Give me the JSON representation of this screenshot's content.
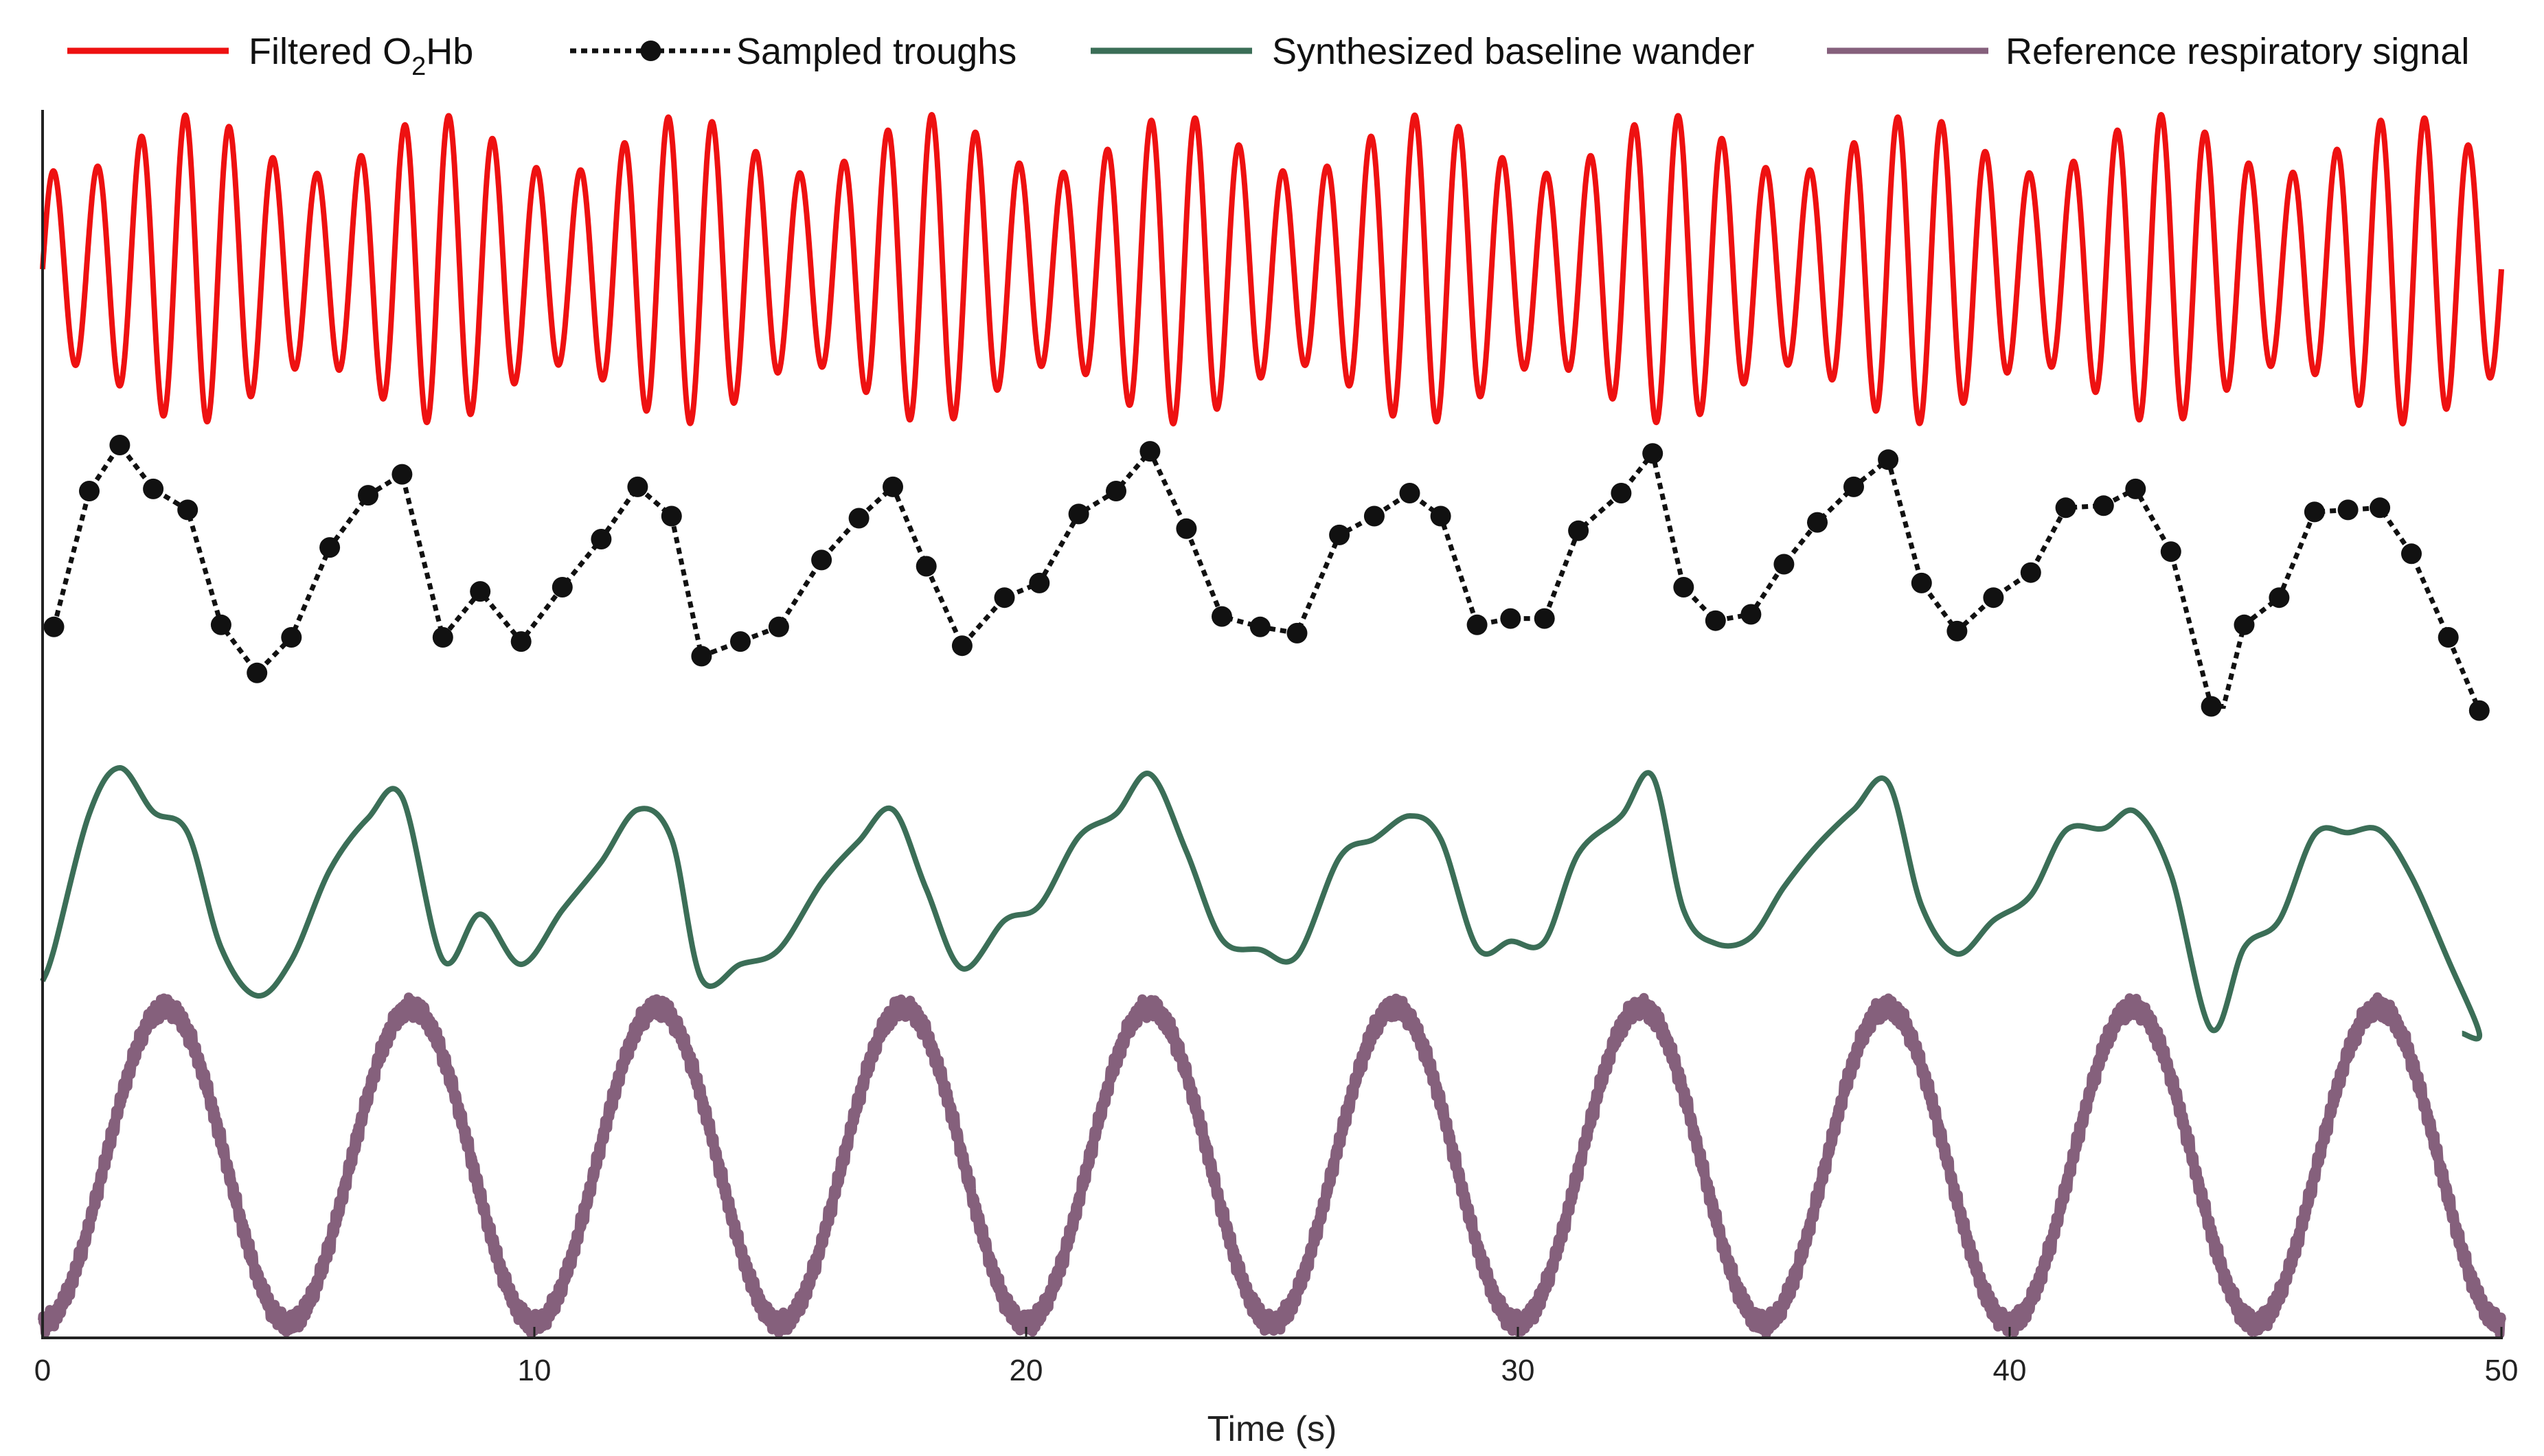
{
  "chart_data": {
    "type": "line",
    "title": "",
    "xlabel": "Time (s)",
    "ylabel": "",
    "xlim": [
      0,
      50
    ],
    "x_ticks": [
      0,
      10,
      20,
      30,
      40,
      50
    ],
    "y_ticks": "none",
    "grid": false,
    "legend_position": "top",
    "legend": [
      {
        "id": "filtered",
        "label_main": "Filtered O",
        "label_sub": "2",
        "label_tail": "Hb",
        "color": "#ee1111",
        "style": "solid"
      },
      {
        "id": "troughs",
        "label_main": "Sampled troughs",
        "label_sub": "",
        "label_tail": "",
        "color": "#111111",
        "style": "dotted-with-markers"
      },
      {
        "id": "baseline",
        "label_main": "Synthesized baseline wander",
        "label_sub": "",
        "label_tail": "",
        "color": "#3b6e57",
        "style": "solid"
      },
      {
        "id": "reference",
        "label_main": "Reference respiratory signal",
        "label_sub": "",
        "label_tail": "",
        "color": "#85607c",
        "style": "solid"
      }
    ],
    "series": [
      {
        "name": "Sampled troughs",
        "x": [
          0.23,
          0.95,
          1.57,
          2.25,
          2.95,
          3.63,
          4.36,
          5.06,
          5.84,
          6.62,
          7.31,
          8.14,
          8.9,
          9.73,
          10.57,
          11.36,
          12.1,
          12.79,
          13.4,
          14.19,
          14.97,
          15.84,
          16.6,
          17.29,
          17.97,
          18.7,
          19.56,
          20.27,
          21.07,
          21.83,
          22.52,
          23.26,
          23.98,
          24.76,
          25.51,
          26.37,
          27.08,
          27.8,
          28.43,
          29.17,
          29.85,
          30.54,
          31.23,
          32.1,
          32.74,
          33.37,
          34.02,
          34.74,
          35.41,
          36.09,
          36.83,
          37.53,
          38.21,
          38.93,
          39.67,
          40.43,
          41.14,
          41.91,
          42.56,
          43.28,
          44.1,
          44.77,
          45.48,
          46.2,
          46.88,
          47.53,
          48.17,
          48.92,
          49.55
        ],
        "values": [
          0.5,
          1.15,
          1.37,
          1.16,
          1.06,
          0.51,
          0.28,
          0.45,
          0.88,
          1.13,
          1.23,
          0.45,
          0.67,
          0.43,
          0.69,
          0.92,
          1.17,
          1.03,
          0.36,
          0.43,
          0.5,
          0.82,
          1.02,
          1.17,
          0.79,
          0.41,
          0.64,
          0.71,
          1.04,
          1.15,
          1.34,
          0.97,
          0.55,
          0.5,
          0.47,
          0.94,
          1.03,
          1.14,
          1.03,
          0.51,
          0.54,
          0.54,
          0.96,
          1.14,
          1.33,
          0.69,
          0.53,
          0.56,
          0.8,
          1.0,
          1.17,
          1.3,
          0.71,
          0.48,
          0.64,
          0.76,
          1.07,
          1.08,
          1.16,
          0.86,
          0.12,
          0.51,
          0.64,
          1.05,
          1.06,
          1.07,
          0.85,
          0.45,
          0.1
        ],
        "tail_x": [
          44.35
        ],
        "tail_values": [
          0.12
        ]
      },
      {
        "name": "Filtered O2Hb",
        "model": "carrier oscillation at about 1.12 Hz whose envelope follows the respiratory rhythm",
        "carrier_hz": 1.12,
        "envelope_min": 0.62,
        "envelope_max": 1.0,
        "x_range": [
          0,
          50
        ]
      },
      {
        "name": "Synthesized baseline wander",
        "model": "smooth curve passing through the sampled troughs",
        "x_range": [
          0,
          49.2
        ]
      },
      {
        "name": "Reference respiratory signal",
        "model": "sinusoid with small high-frequency noise",
        "period_s": 5.0,
        "phase_s": 1.25,
        "noise_amplitude": 0.035,
        "x_range": [
          0,
          50
        ]
      }
    ]
  }
}
